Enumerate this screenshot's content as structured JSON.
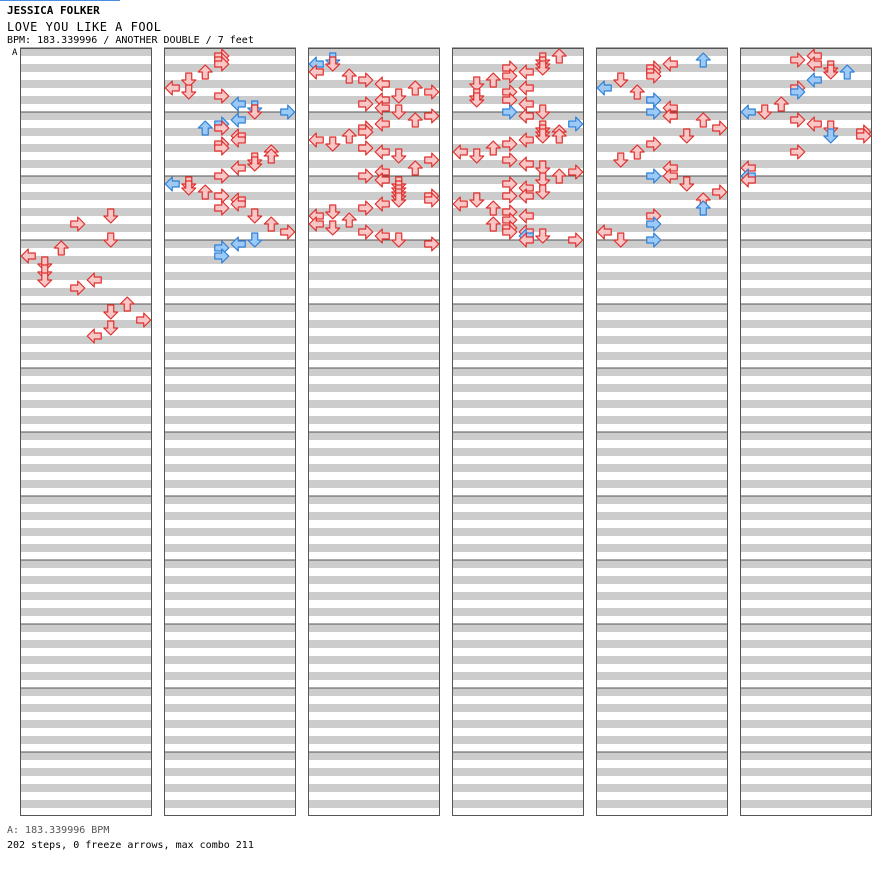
{
  "header": {
    "artist": "JESSICA FOLKER",
    "title": "LOVE YOU LIKE A FOOL",
    "meta": "BPM: 183.339996 / ANOTHER DOUBLE / 7 feet",
    "bpm_marker": "A"
  },
  "footer": {
    "bpm_legend": "A: 183.339996 BPM",
    "stats": "202 steps, 0 freeze arrows, max combo 211"
  },
  "colors": {
    "note_red_fill": "#f7c6c6",
    "note_red_stroke": "#e0302e",
    "note_blue_fill": "#9cc9f5",
    "note_blue_stroke": "#2f80d8",
    "stripe": "#cccccc",
    "border": "#555555"
  },
  "chart_data": {
    "type": "step-chart",
    "columns": 6,
    "measures_per_column": 12,
    "lanes": 8,
    "note_format": [
      "measure_offset_in_16ths_from_column_top",
      "lane",
      "color"
    ],
    "notes": [
      [
        [
          40,
          5,
          "r"
        ],
        [
          42,
          3,
          "r"
        ],
        [
          46,
          5,
          "r"
        ],
        [
          48,
          2,
          "r"
        ],
        [
          50,
          0,
          "r"
        ],
        [
          52,
          1,
          "r"
        ],
        [
          54,
          1,
          "r"
        ],
        [
          56,
          1,
          "r"
        ],
        [
          56,
          4,
          "r"
        ],
        [
          58,
          3,
          "r"
        ],
        [
          62,
          6,
          "r"
        ],
        [
          64,
          5,
          "r"
        ],
        [
          66,
          7,
          "r"
        ],
        [
          68,
          5,
          "r"
        ],
        [
          70,
          4,
          "r"
        ]
      ],
      [
        [
          0,
          3,
          "r"
        ],
        [
          1,
          3,
          "r"
        ],
        [
          2,
          3,
          "r"
        ],
        [
          4,
          2,
          "r"
        ],
        [
          6,
          1,
          "r"
        ],
        [
          8,
          0,
          "r"
        ],
        [
          9,
          1,
          "r"
        ],
        [
          10,
          3,
          "r"
        ],
        [
          12,
          4,
          "b"
        ],
        [
          13,
          5,
          "b"
        ],
        [
          14,
          7,
          "b"
        ],
        [
          14,
          5,
          "r"
        ],
        [
          16,
          4,
          "b"
        ],
        [
          17,
          3,
          "b"
        ],
        [
          18,
          2,
          "b"
        ],
        [
          18,
          3,
          "r"
        ],
        [
          20,
          4,
          "r"
        ],
        [
          21,
          4,
          "r"
        ],
        [
          22,
          3,
          "r"
        ],
        [
          23,
          3,
          "r"
        ],
        [
          24,
          6,
          "r"
        ],
        [
          25,
          6,
          "r"
        ],
        [
          26,
          5,
          "r"
        ],
        [
          27,
          5,
          "r"
        ],
        [
          28,
          4,
          "r"
        ],
        [
          30,
          3,
          "r"
        ],
        [
          32,
          1,
          "r"
        ],
        [
          32,
          0,
          "b"
        ],
        [
          33,
          1,
          "r"
        ],
        [
          34,
          2,
          "r"
        ],
        [
          35,
          3,
          "r"
        ],
        [
          36,
          4,
          "r"
        ],
        [
          37,
          4,
          "r"
        ],
        [
          38,
          3,
          "r"
        ],
        [
          40,
          5,
          "r"
        ],
        [
          42,
          6,
          "r"
        ],
        [
          44,
          7,
          "r"
        ],
        [
          46,
          5,
          "b"
        ],
        [
          47,
          4,
          "b"
        ],
        [
          48,
          3,
          "b"
        ],
        [
          50,
          3,
          "b"
        ]
      ],
      [
        [
          1,
          1,
          "b"
        ],
        [
          2,
          0,
          "b"
        ],
        [
          2,
          1,
          "r"
        ],
        [
          4,
          0,
          "r"
        ],
        [
          5,
          2,
          "r"
        ],
        [
          6,
          3,
          "r"
        ],
        [
          7,
          4,
          "r"
        ],
        [
          8,
          6,
          "r"
        ],
        [
          9,
          7,
          "r"
        ],
        [
          10,
          5,
          "r"
        ],
        [
          11,
          4,
          "r"
        ],
        [
          12,
          3,
          "r"
        ],
        [
          13,
          4,
          "r"
        ],
        [
          14,
          5,
          "r"
        ],
        [
          15,
          7,
          "r"
        ],
        [
          16,
          6,
          "r"
        ],
        [
          17,
          4,
          "r"
        ],
        [
          18,
          3,
          "r"
        ],
        [
          19,
          3,
          "r"
        ],
        [
          20,
          2,
          "r"
        ],
        [
          21,
          0,
          "r"
        ],
        [
          22,
          1,
          "r"
        ],
        [
          23,
          3,
          "r"
        ],
        [
          24,
          4,
          "r"
        ],
        [
          25,
          5,
          "r"
        ],
        [
          26,
          7,
          "r"
        ],
        [
          28,
          6,
          "r"
        ],
        [
          29,
          4,
          "r"
        ],
        [
          30,
          3,
          "r"
        ],
        [
          31,
          4,
          "r"
        ],
        [
          32,
          5,
          "r"
        ],
        [
          33,
          5,
          "r"
        ],
        [
          34,
          5,
          "r"
        ],
        [
          35,
          5,
          "r"
        ],
        [
          35,
          7,
          "r"
        ],
        [
          36,
          5,
          "r"
        ],
        [
          36,
          7,
          "r"
        ],
        [
          37,
          4,
          "r"
        ],
        [
          38,
          3,
          "r"
        ],
        [
          39,
          1,
          "r"
        ],
        [
          40,
          0,
          "r"
        ],
        [
          41,
          2,
          "r"
        ],
        [
          42,
          0,
          "r"
        ],
        [
          43,
          1,
          "r"
        ],
        [
          44,
          3,
          "r"
        ],
        [
          45,
          4,
          "r"
        ],
        [
          46,
          5,
          "r"
        ],
        [
          47,
          7,
          "r"
        ]
      ],
      [
        [
          0,
          6,
          "r"
        ],
        [
          1,
          5,
          "r"
        ],
        [
          2,
          5,
          "r"
        ],
        [
          3,
          3,
          "r"
        ],
        [
          3,
          5,
          "r"
        ],
        [
          4,
          4,
          "r"
        ],
        [
          5,
          3,
          "r"
        ],
        [
          6,
          2,
          "r"
        ],
        [
          7,
          1,
          "r"
        ],
        [
          8,
          4,
          "r"
        ],
        [
          9,
          3,
          "r"
        ],
        [
          10,
          1,
          "r"
        ],
        [
          11,
          1,
          "r"
        ],
        [
          11,
          3,
          "r"
        ],
        [
          12,
          4,
          "r"
        ],
        [
          14,
          3,
          "b"
        ],
        [
          14,
          5,
          "r"
        ],
        [
          15,
          4,
          "r"
        ],
        [
          17,
          7,
          "b"
        ],
        [
          18,
          5,
          "r"
        ],
        [
          19,
          5,
          "r"
        ],
        [
          19,
          6,
          "r"
        ],
        [
          20,
          5,
          "r"
        ],
        [
          20,
          6,
          "r"
        ],
        [
          21,
          4,
          "r"
        ],
        [
          22,
          3,
          "r"
        ],
        [
          23,
          2,
          "r"
        ],
        [
          24,
          0,
          "r"
        ],
        [
          25,
          1,
          "r"
        ],
        [
          26,
          3,
          "r"
        ],
        [
          27,
          4,
          "r"
        ],
        [
          28,
          5,
          "r"
        ],
        [
          29,
          7,
          "r"
        ],
        [
          30,
          6,
          "r"
        ],
        [
          31,
          5,
          "r"
        ],
        [
          32,
          3,
          "r"
        ],
        [
          33,
          4,
          "r"
        ],
        [
          34,
          5,
          "r"
        ],
        [
          35,
          4,
          "r"
        ],
        [
          35,
          3,
          "r"
        ],
        [
          36,
          1,
          "r"
        ],
        [
          37,
          0,
          "r"
        ],
        [
          38,
          2,
          "r"
        ],
        [
          39,
          3,
          "r"
        ],
        [
          40,
          4,
          "r"
        ],
        [
          41,
          3,
          "r"
        ],
        [
          42,
          2,
          "r"
        ],
        [
          43,
          3,
          "r"
        ],
        [
          44,
          3,
          "r"
        ],
        [
          44,
          4,
          "r"
        ],
        [
          45,
          4,
          "b"
        ],
        [
          45,
          5,
          "r"
        ],
        [
          46,
          4,
          "r"
        ],
        [
          46,
          7,
          "r"
        ]
      ],
      [
        [
          1,
          6,
          "b"
        ],
        [
          2,
          4,
          "r"
        ],
        [
          3,
          3,
          "r"
        ],
        [
          4,
          3,
          "r"
        ],
        [
          5,
          3,
          "r"
        ],
        [
          6,
          1,
          "r"
        ],
        [
          8,
          0,
          "b"
        ],
        [
          9,
          2,
          "r"
        ],
        [
          11,
          3,
          "b"
        ],
        [
          13,
          4,
          "r"
        ],
        [
          14,
          3,
          "b"
        ],
        [
          15,
          4,
          "r"
        ],
        [
          16,
          6,
          "r"
        ],
        [
          18,
          7,
          "r"
        ],
        [
          20,
          5,
          "r"
        ],
        [
          22,
          3,
          "r"
        ],
        [
          24,
          2,
          "r"
        ],
        [
          26,
          1,
          "r"
        ],
        [
          28,
          4,
          "r"
        ],
        [
          30,
          3,
          "b"
        ],
        [
          30,
          4,
          "r"
        ],
        [
          32,
          5,
          "r"
        ],
        [
          34,
          7,
          "r"
        ],
        [
          36,
          6,
          "r"
        ],
        [
          38,
          6,
          "b"
        ],
        [
          40,
          3,
          "r"
        ],
        [
          42,
          3,
          "b"
        ],
        [
          44,
          0,
          "r"
        ],
        [
          46,
          1,
          "r"
        ],
        [
          46,
          3,
          "b"
        ]
      ],
      [
        [
          0,
          4,
          "r"
        ],
        [
          1,
          3,
          "r"
        ],
        [
          2,
          4,
          "r"
        ],
        [
          3,
          5,
          "r"
        ],
        [
          4,
          5,
          "r"
        ],
        [
          4,
          6,
          "b"
        ],
        [
          6,
          4,
          "b"
        ],
        [
          8,
          3,
          "r"
        ],
        [
          9,
          3,
          "b"
        ],
        [
          12,
          2,
          "r"
        ],
        [
          14,
          0,
          "b"
        ],
        [
          14,
          1,
          "r"
        ],
        [
          16,
          3,
          "r"
        ],
        [
          17,
          4,
          "r"
        ],
        [
          18,
          5,
          "r"
        ],
        [
          19,
          7,
          "r"
        ],
        [
          20,
          5,
          "b"
        ],
        [
          20,
          7,
          "r"
        ],
        [
          24,
          3,
          "r"
        ],
        [
          28,
          0,
          "r"
        ],
        [
          30,
          0,
          "b"
        ],
        [
          31,
          0,
          "r"
        ]
      ]
    ]
  }
}
